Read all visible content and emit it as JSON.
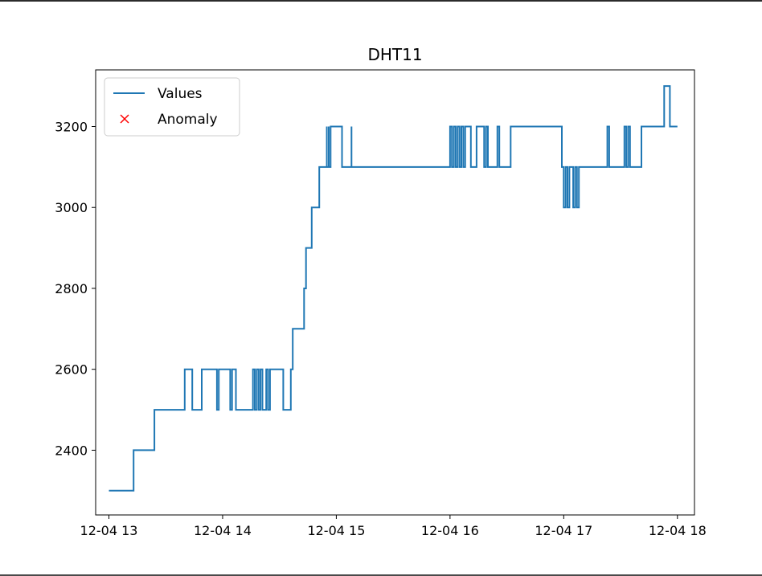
{
  "chart_data": {
    "type": "line",
    "title": "DHT11",
    "xlabel": "",
    "ylabel": "",
    "x_tick_labels": [
      "12-04 13",
      "12-04 14",
      "12-04 15",
      "12-04 16",
      "12-04 17",
      "12-04 18"
    ],
    "xlim": [
      "12-04 12:53",
      "12-04 18:09"
    ],
    "ylim": [
      2240,
      3340
    ],
    "yticks": [
      2400,
      2600,
      2800,
      3000,
      3200
    ],
    "grid": false,
    "legend": {
      "placement": "upper-left",
      "entries": [
        "Values",
        "Anomaly"
      ]
    },
    "series": [
      {
        "name": "Values",
        "color": "#1f77b4",
        "marker": "none",
        "x": [
          "12-04 13:00",
          "12-04 13:13",
          "12-04 13:13",
          "12-04 13:24",
          "12-04 13:24",
          "12-04 13:40",
          "12-04 13:40",
          "12-04 13:44",
          "12-04 13:44",
          "12-04 13:49",
          "12-04 13:49",
          "12-04 13:57",
          "12-04 13:57",
          "12-04 13:58",
          "12-04 13:58",
          "12-04 14:04",
          "12-04 14:04",
          "12-04 14:05",
          "12-04 14:05",
          "12-04 14:07",
          "12-04 14:07",
          "12-04 14:16",
          "12-04 14:16",
          "12-04 14:17",
          "12-04 14:17",
          "12-04 14:18",
          "12-04 14:18",
          "12-04 14:19",
          "12-04 14:19",
          "12-04 14:20",
          "12-04 14:20",
          "12-04 14:21",
          "12-04 14:21",
          "12-04 14:23",
          "12-04 14:23",
          "12-04 14:24",
          "12-04 14:24",
          "12-04 14:25",
          "12-04 14:25",
          "12-04 14:32",
          "12-04 14:32",
          "12-04 14:36",
          "12-04 14:36",
          "12-04 14:37",
          "12-04 14:37",
          "12-04 14:43",
          "12-04 14:43",
          "12-04 14:44",
          "12-04 14:44",
          "12-04 14:47",
          "12-04 14:47",
          "12-04 14:51",
          "12-04 14:51",
          "12-04 14:55",
          "12-04 14:55",
          "12-04 14:55",
          "12-04 14:55",
          "12-04 14:56",
          "12-04 14:56",
          "12-04 14:56",
          "12-04 14:56",
          "12-04 14:57",
          "12-04 14:57",
          "12-04 15:03",
          "12-04 15:03",
          "12-04 15:08",
          "12-04 15:08",
          "12-04 15:08",
          "12-04 15:08",
          "12-04 16:00",
          "12-04 16:00",
          "12-04 16:01",
          "12-04 16:01",
          "12-04 16:02",
          "12-04 16:02",
          "12-04 16:03",
          "12-04 16:03",
          "12-04 16:04",
          "12-04 16:04",
          "12-04 16:05",
          "12-04 16:05",
          "12-04 16:06",
          "12-04 16:06",
          "12-04 16:07",
          "12-04 16:07",
          "12-04 16:08",
          "12-04 16:08",
          "12-04 16:11",
          "12-04 16:11",
          "12-04 16:14",
          "12-04 16:14",
          "12-04 16:18",
          "12-04 16:18",
          "12-04 16:19",
          "12-04 16:19",
          "12-04 16:20",
          "12-04 16:20",
          "12-04 16:25",
          "12-04 16:25",
          "12-04 16:26",
          "12-04 16:26",
          "12-04 16:32",
          "12-04 16:32",
          "12-04 16:59",
          "12-04 16:59",
          "12-04 17:00",
          "12-04 17:00",
          "12-04 17:01",
          "12-04 17:01",
          "12-04 17:02",
          "12-04 17:02",
          "12-04 17:03",
          "12-04 17:03",
          "12-04 17:05",
          "12-04 17:05",
          "12-04 17:06",
          "12-04 17:06",
          "12-04 17:07",
          "12-04 17:07",
          "12-04 17:08",
          "12-04 17:08",
          "12-04 17:23",
          "12-04 17:23",
          "12-04 17:24",
          "12-04 17:24",
          "12-04 17:32",
          "12-04 17:32",
          "12-04 17:33",
          "12-04 17:33",
          "12-04 17:34",
          "12-04 17:34",
          "12-04 17:35",
          "12-04 17:35",
          "12-04 17:41",
          "12-04 17:41",
          "12-04 17:53",
          "12-04 17:53",
          "12-04 17:56",
          "12-04 17:56",
          "12-04 18:00"
        ],
        "y": [
          2300,
          2300,
          2400,
          2400,
          2500,
          2500,
          2600,
          2600,
          2500,
          2500,
          2600,
          2600,
          2500,
          2500,
          2600,
          2600,
          2500,
          2500,
          2600,
          2600,
          2500,
          2500,
          2600,
          2600,
          2500,
          2500,
          2600,
          2600,
          2500,
          2500,
          2600,
          2600,
          2500,
          2500,
          2600,
          2600,
          2500,
          2500,
          2600,
          2600,
          2500,
          2500,
          2600,
          2600,
          2700,
          2700,
          2800,
          2800,
          2900,
          2900,
          3000,
          3000,
          3100,
          3100,
          3200,
          3200,
          3100,
          3100,
          3200,
          3200,
          3100,
          3100,
          3200,
          3200,
          3100,
          3100,
          3200,
          3200,
          3100,
          3100,
          3200,
          3200,
          3100,
          3100,
          3200,
          3200,
          3100,
          3100,
          3200,
          3200,
          3100,
          3100,
          3200,
          3200,
          3100,
          3100,
          3200,
          3200,
          3100,
          3100,
          3200,
          3200,
          3100,
          3100,
          3200,
          3200,
          3100,
          3100,
          3200,
          3200,
          3100,
          3100,
          3200,
          3200,
          3100,
          3100,
          3000,
          3000,
          3100,
          3100,
          3000,
          3000,
          3100,
          3100,
          3000,
          3000,
          3100,
          3100,
          3000,
          3000,
          3100,
          3100,
          3200,
          3200,
          3100,
          3100,
          3200,
          3200,
          3100,
          3100,
          3200,
          3200,
          3100,
          3100,
          3200,
          3200,
          3300,
          3300,
          3200,
          3200
        ]
      },
      {
        "name": "Anomaly",
        "color": "#ff0000",
        "marker": "x",
        "x": [],
        "y": []
      }
    ]
  }
}
